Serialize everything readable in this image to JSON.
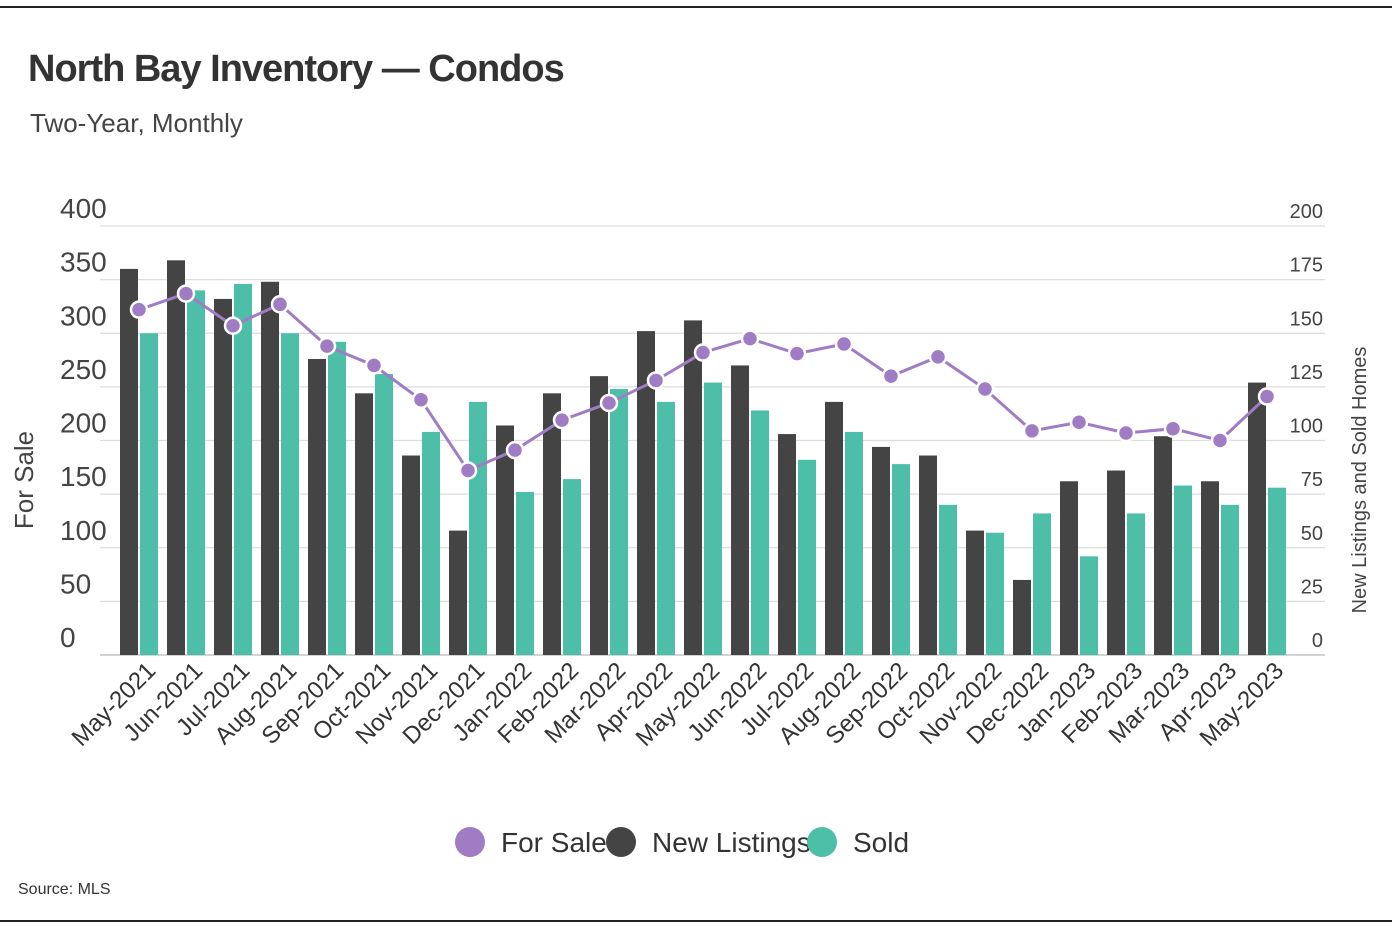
{
  "chart_data": {
    "type": "bar",
    "title": "North Bay Inventory — Condos",
    "subtitle": "Two-Year, Monthly",
    "source": "Source:  MLS",
    "ylabel": "For Sale",
    "ylabel_right": "New Listings and Sold Homes",
    "ylim": [
      0,
      400
    ],
    "ylim_right": [
      0,
      200
    ],
    "yticks": [
      0,
      50,
      100,
      150,
      200,
      250,
      300,
      350,
      400
    ],
    "yticks_right": [
      0,
      25,
      50,
      75,
      100,
      125,
      150,
      175,
      200
    ],
    "grid": true,
    "legend_placement": "bottom",
    "categories": [
      "May-2021",
      "Jun-2021",
      "Jul-2021",
      "Aug-2021",
      "Sep-2021",
      "Oct-2021",
      "Nov-2021",
      "Dec-2021",
      "Jan-2022",
      "Feb-2022",
      "Mar-2022",
      "Apr-2022",
      "May-2022",
      "Jun-2022",
      "Jul-2022",
      "Aug-2022",
      "Sep-2022",
      "Oct-2022",
      "Nov-2022",
      "Dec-2022",
      "Jan-2023",
      "Feb-2023",
      "Mar-2023",
      "Apr-2023",
      "May-2023"
    ],
    "series": [
      {
        "name": "For Sale",
        "type": "line",
        "axis": "left",
        "color": "#a07cc5",
        "values": [
          322,
          337,
          307,
          327,
          288,
          270,
          238,
          172,
          191,
          219,
          235,
          256,
          282,
          295,
          281,
          290,
          260,
          278,
          248,
          209,
          217,
          207,
          211,
          200,
          241
        ]
      },
      {
        "name": "New Listings",
        "type": "bar",
        "axis": "right",
        "color": "#444444",
        "values": [
          180,
          184,
          166,
          174,
          138,
          122,
          93,
          58,
          107,
          122,
          130,
          151,
          156,
          135,
          103,
          118,
          97,
          93,
          58,
          35,
          81,
          86,
          102,
          81,
          127
        ]
      },
      {
        "name": "Sold",
        "type": "bar",
        "axis": "right",
        "color": "#4dbfa9",
        "values": [
          150,
          170,
          173,
          150,
          146,
          131,
          104,
          118,
          76,
          82,
          124,
          118,
          127,
          114,
          91,
          104,
          89,
          70,
          57,
          66,
          46,
          66,
          79,
          70,
          78
        ]
      }
    ]
  }
}
